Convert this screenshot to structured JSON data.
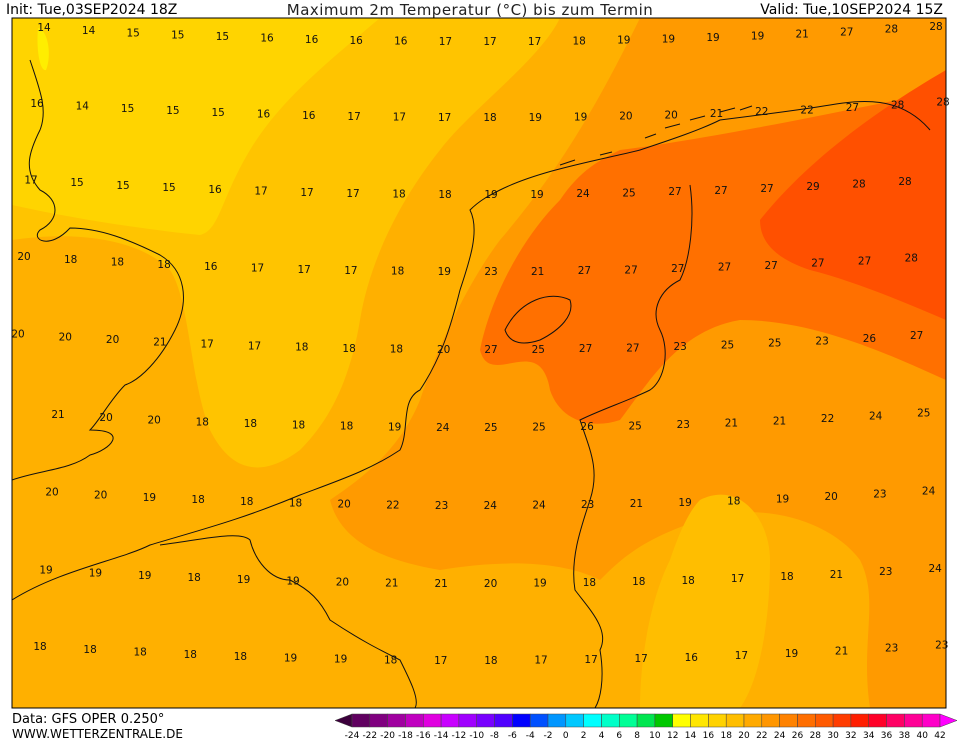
{
  "header": {
    "init": "Init: Tue,03SEP2024 18Z",
    "title": "Maximum 2m Temperatur (°C) bis zum Termin",
    "valid": "Valid: Tue,10SEP2024 15Z"
  },
  "map": {
    "rows": [
      [
        14,
        14,
        15,
        15,
        15,
        16,
        16,
        16,
        16,
        17,
        17,
        17,
        18,
        19,
        19,
        19,
        19,
        21,
        27,
        28,
        28
      ],
      [
        16,
        14,
        15,
        15,
        15,
        16,
        16,
        17,
        17,
        17,
        18,
        19,
        19,
        20,
        20,
        21,
        22,
        22,
        27,
        28,
        28
      ],
      [
        17,
        15,
        15,
        15,
        16,
        17,
        17,
        17,
        18,
        18,
        19,
        19,
        24,
        25,
        27,
        27,
        27,
        29,
        28,
        28
      ],
      [
        20,
        18,
        18,
        18,
        16,
        17,
        17,
        17,
        18,
        19,
        23,
        21,
        27,
        27,
        27,
        27,
        27,
        27,
        27,
        28
      ],
      [
        20,
        20,
        20,
        21,
        17,
        17,
        18,
        18,
        18,
        20,
        27,
        25,
        27,
        27,
        23,
        25,
        25,
        23,
        26,
        27
      ],
      [
        21,
        20,
        20,
        18,
        18,
        18,
        18,
        19,
        24,
        25,
        25,
        26,
        25,
        23,
        21,
        21,
        22,
        24,
        25
      ],
      [
        20,
        20,
        19,
        18,
        18,
        18,
        20,
        22,
        23,
        24,
        24,
        23,
        21,
        19,
        18,
        19,
        20,
        23,
        24
      ],
      [
        19,
        19,
        19,
        18,
        19,
        19,
        20,
        21,
        21,
        20,
        19,
        18,
        18,
        18,
        17,
        18,
        21,
        23,
        24
      ],
      [
        18,
        18,
        18,
        18,
        18,
        19,
        19,
        18,
        17,
        18,
        17,
        17,
        17,
        16,
        17,
        19,
        21,
        23,
        23
      ]
    ]
  },
  "footer": {
    "data": "Data: GFS OPER 0.250°",
    "site": "WWW.WETTERZENTRALE.DE"
  },
  "colorbar": {
    "labels": [
      -24,
      -22,
      -20,
      -18,
      -16,
      -14,
      -12,
      -10,
      -8,
      -6,
      -4,
      -2,
      0,
      2,
      4,
      6,
      8,
      10,
      12,
      14,
      16,
      18,
      20,
      22,
      24,
      26,
      28,
      30,
      32,
      34,
      36,
      38,
      40,
      42
    ]
  }
}
